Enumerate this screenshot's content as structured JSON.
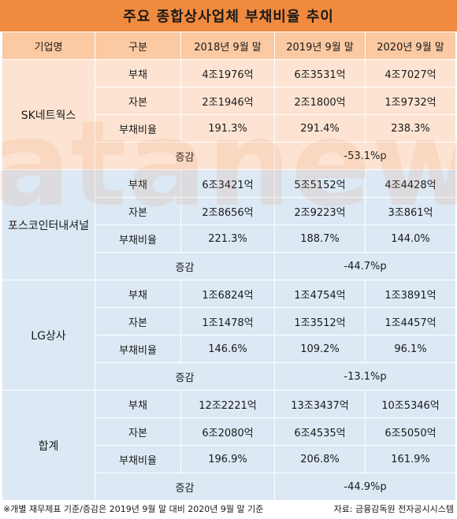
{
  "title": "주요 종합상사업체 부채비율 추이",
  "watermark": "datanews",
  "colors": {
    "header_bar": "#f08a3e",
    "head_row": "#fbc9a2",
    "group_orange": "#fde4d2",
    "group_blue": "#dce9f5"
  },
  "headers": {
    "company": "기업명",
    "category": "구분",
    "col1": "2018년 9월 말",
    "col2": "2019년 9월 말",
    "col3": "2020년 9월 말"
  },
  "groups": [
    {
      "name": "SK네트웍스",
      "rows": [
        {
          "label": "부채",
          "v1": "4조1976억",
          "v2": "6조3531억",
          "v3": "4조7027억"
        },
        {
          "label": "자본",
          "v1": "2조1946억",
          "v2": "2조1800억",
          "v3": "1조9732억"
        },
        {
          "label": "부채비율",
          "v1": "191.3%",
          "v2": "291.4%",
          "v3": "238.3%"
        }
      ],
      "change_label": "증감",
      "change": "-53.1%p"
    },
    {
      "name": "포스코인터내셔널",
      "rows": [
        {
          "label": "부채",
          "v1": "6조3421억",
          "v2": "5조5152억",
          "v3": "4조4428억"
        },
        {
          "label": "자본",
          "v1": "2조8656억",
          "v2": "2조9223억",
          "v3": "3조861억"
        },
        {
          "label": "부채비율",
          "v1": "221.3%",
          "v2": "188.7%",
          "v3": "144.0%"
        }
      ],
      "change_label": "증감",
      "change": "-44.7%p"
    },
    {
      "name": "LG상사",
      "rows": [
        {
          "label": "부채",
          "v1": "1조6824억",
          "v2": "1조4754억",
          "v3": "1조3891억"
        },
        {
          "label": "자본",
          "v1": "1조1478억",
          "v2": "1조3512억",
          "v3": "1조4457억"
        },
        {
          "label": "부채비율",
          "v1": "146.6%",
          "v2": "109.2%",
          "v3": "96.1%"
        }
      ],
      "change_label": "증감",
      "change": "-13.1%p"
    },
    {
      "name": "합계",
      "rows": [
        {
          "label": "부채",
          "v1": "12조2221억",
          "v2": "13조3437억",
          "v3": "10조5346억"
        },
        {
          "label": "자본",
          "v1": "6조2080억",
          "v2": "6조4535억",
          "v3": "6조5050억"
        },
        {
          "label": "부채비율",
          "v1": "196.9%",
          "v2": "206.8%",
          "v3": "161.9%"
        }
      ],
      "change_label": "증감",
      "change": "-44.9%p"
    }
  ],
  "footer": {
    "note": "※개별 재무제표 기준/증감은 2019년 9월 말 대비 2020년 9월 말 기준",
    "source": "자료: 금융감독원 전자공시시스템"
  }
}
